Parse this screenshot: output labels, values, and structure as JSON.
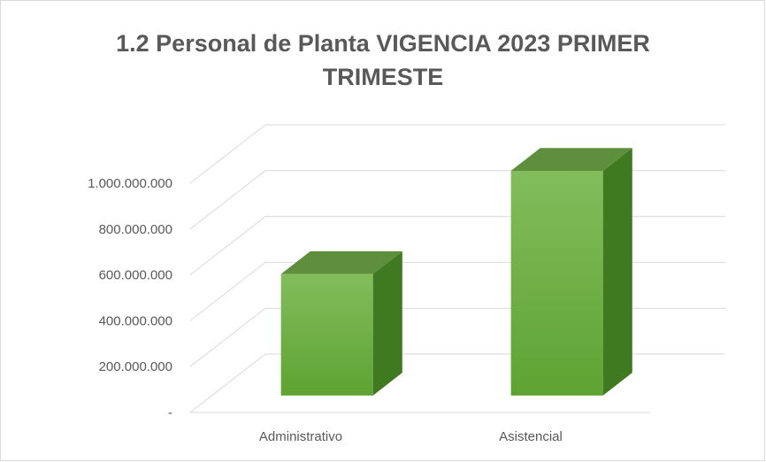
{
  "chart_data": {
    "type": "bar3d",
    "title": "1.2 Personal de Planta VIGENCIA 2023 PRIMER TRIMESTE",
    "categories": [
      "Administrativo",
      "Asistencial"
    ],
    "values": [
      530000000,
      980000000
    ],
    "color": "#6aad3d",
    "ylim": [
      0,
      1000000000
    ],
    "yticks": [
      {
        "value": 0,
        "label": "-"
      },
      {
        "value": 200000000,
        "label": "200.000.000"
      },
      {
        "value": 400000000,
        "label": "400.000.000"
      },
      {
        "value": 600000000,
        "label": "600.000.000"
      },
      {
        "value": 800000000,
        "label": "800.000.000"
      },
      {
        "value": 1000000000,
        "label": "1.000.000.000"
      }
    ],
    "grid": true
  }
}
